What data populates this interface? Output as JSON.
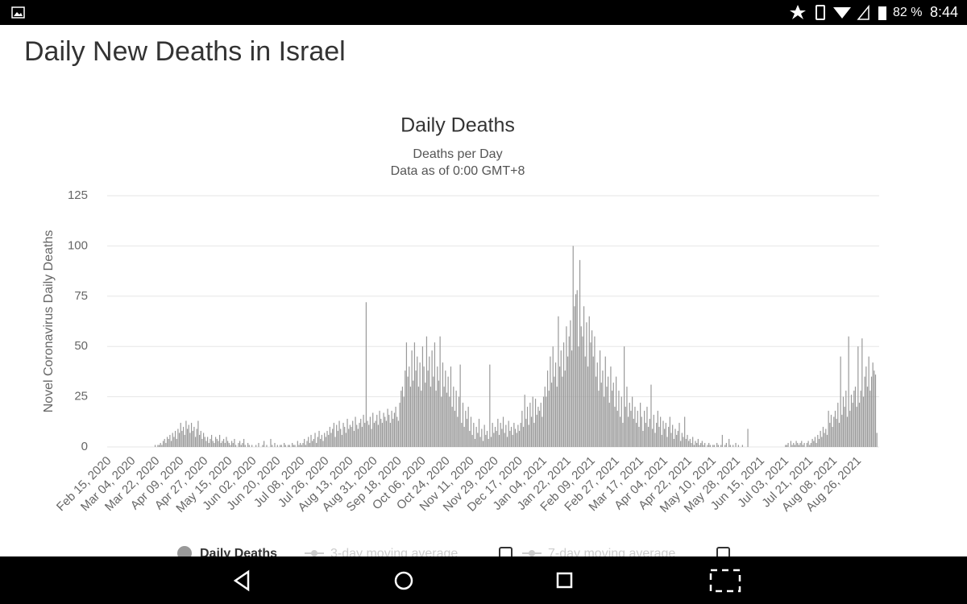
{
  "status_bar": {
    "battery": "82 %",
    "time": "8:44"
  },
  "page_title": "Daily New Deaths in Israel",
  "chart_data": {
    "type": "bar",
    "title": "Daily Deaths",
    "subtitle": [
      "Deaths per Day",
      "Data as of 0:00 GMT+8"
    ],
    "y_label": "Novel Coronavirus Daily Deaths",
    "ylim": [
      0,
      125
    ],
    "yticks": [
      0,
      25,
      50,
      75,
      100,
      125
    ],
    "grid": true,
    "categories": [
      "Feb 15, 2020",
      null,
      null,
      null,
      null,
      null,
      null,
      null,
      null,
      null,
      null,
      null,
      null,
      null,
      null,
      null,
      null,
      null,
      "Mar 04, 2020",
      null,
      null,
      null,
      null,
      null,
      null,
      null,
      null,
      null,
      null,
      null,
      null,
      null,
      null,
      null,
      null,
      null,
      "Mar 22, 2020",
      null,
      null,
      null,
      null,
      null,
      null,
      null,
      null,
      null,
      null,
      null,
      null,
      null,
      null,
      null,
      null,
      null,
      "Apr 09, 2020",
      null,
      null,
      null,
      null,
      null,
      null,
      null,
      null,
      null,
      null,
      null,
      null,
      null,
      null,
      null,
      null,
      null,
      "Apr 27, 2020",
      null,
      null,
      null,
      null,
      null,
      null,
      null,
      null,
      null,
      null,
      null,
      null,
      null,
      null,
      null,
      null,
      null,
      "May 15, 2020",
      null,
      null,
      null,
      null,
      null,
      null,
      null,
      null,
      null,
      null,
      null,
      null,
      null,
      null,
      null,
      null,
      null,
      "Jun 02, 2020",
      null,
      null,
      null,
      null,
      null,
      null,
      null,
      null,
      null,
      null,
      null,
      null,
      null,
      null,
      null,
      null,
      null,
      "Jun 20, 2020",
      null,
      null,
      null,
      null,
      null,
      null,
      null,
      null,
      null,
      null,
      null,
      null,
      null,
      null,
      null,
      null,
      null,
      "Jul 08, 2020",
      null,
      null,
      null,
      null,
      null,
      null,
      null,
      null,
      null,
      null,
      null,
      null,
      null,
      null,
      null,
      null,
      null,
      "Jul 26, 2020",
      null,
      null,
      null,
      null,
      null,
      null,
      null,
      null,
      null,
      null,
      null,
      null,
      null,
      null,
      null,
      null,
      null,
      "Aug 13, 2020",
      null,
      null,
      null,
      null,
      null,
      null,
      null,
      null,
      null,
      null,
      null,
      null,
      null,
      null,
      null,
      null,
      null,
      "Aug 31, 2020",
      null,
      null,
      null,
      null,
      null,
      null,
      null,
      null,
      null,
      null,
      null,
      null,
      null,
      null,
      null,
      null,
      null,
      "Sep 18, 2020",
      null,
      null,
      null,
      null,
      null,
      null,
      null,
      null,
      null,
      null,
      null,
      null,
      null,
      null,
      null,
      null,
      null,
      "Oct 06, 2020",
      null,
      null,
      null,
      null,
      null,
      null,
      null,
      null,
      null,
      null,
      null,
      null,
      null,
      null,
      null,
      null,
      null,
      "Oct 24, 2020",
      null,
      null,
      null,
      null,
      null,
      null,
      null,
      null,
      null,
      null,
      null,
      null,
      null,
      null,
      null,
      null,
      null,
      "Nov 11, 2020",
      null,
      null,
      null,
      null,
      null,
      null,
      null,
      null,
      null,
      null,
      null,
      null,
      null,
      null,
      null,
      null,
      null,
      "Nov 29, 2020",
      null,
      null,
      null,
      null,
      null,
      null,
      null,
      null,
      null,
      null,
      null,
      null,
      null,
      null,
      null,
      null,
      null,
      "Dec 17, 2020",
      null,
      null,
      null,
      null,
      null,
      null,
      null,
      null,
      null,
      null,
      null,
      null,
      null,
      null,
      null,
      null,
      null,
      "Jan 04, 2021",
      null,
      null,
      null,
      null,
      null,
      null,
      null,
      null,
      null,
      null,
      null,
      null,
      null,
      null,
      null,
      null,
      null,
      "Jan 22, 2021",
      null,
      null,
      null,
      null,
      null,
      null,
      null,
      null,
      null,
      null,
      null,
      null,
      null,
      null,
      null,
      null,
      null,
      "Feb 09, 2021",
      null,
      null,
      null,
      null,
      null,
      null,
      null,
      null,
      null,
      null,
      null,
      null,
      null,
      null,
      null,
      null,
      null,
      "Feb 27, 2021",
      null,
      null,
      null,
      null,
      null,
      null,
      null,
      null,
      null,
      null,
      null,
      null,
      null,
      null,
      null,
      null,
      null,
      "Mar 17, 2021",
      null,
      null,
      null,
      null,
      null,
      null,
      null,
      null,
      null,
      null,
      null,
      null,
      null,
      null,
      null,
      null,
      null,
      "Apr 04, 2021",
      null,
      null,
      null,
      null,
      null,
      null,
      null,
      null,
      null,
      null,
      null,
      null,
      null,
      null,
      null,
      null,
      null,
      "Apr 22, 2021",
      null,
      null,
      null,
      null,
      null,
      null,
      null,
      null,
      null,
      null,
      null,
      null,
      null,
      null,
      null,
      null,
      null,
      "May 10, 2021",
      null,
      null,
      null,
      null,
      null,
      null,
      null,
      null,
      null,
      null,
      null,
      null,
      null,
      null,
      null,
      null,
      null,
      "May 28, 2021",
      null,
      null,
      null,
      null,
      null,
      null,
      null,
      null,
      null,
      null,
      null,
      null,
      null,
      null,
      null,
      null,
      null,
      "Jun 15, 2021",
      null,
      null,
      null,
      null,
      null,
      null,
      null,
      null,
      null,
      null,
      null,
      null,
      null,
      null,
      null,
      null,
      null,
      "Jul 03, 2021",
      null,
      null,
      null,
      null,
      null,
      null,
      null,
      null,
      null,
      null,
      null,
      null,
      null,
      null,
      null,
      null,
      null,
      "Jul 21, 2021",
      null,
      null,
      null,
      null,
      null,
      null,
      null,
      null,
      null,
      null,
      null,
      null,
      null,
      null,
      null,
      null,
      null,
      "Aug 08, 2021",
      null,
      null,
      null,
      null,
      null,
      null,
      null,
      null,
      null,
      null,
      null,
      null,
      null,
      null,
      null,
      null,
      null,
      "Aug 26, 2021",
      null,
      null,
      null,
      null,
      null,
      null,
      null,
      null,
      null,
      null,
      null,
      null,
      null
    ],
    "series": [
      {
        "name": "Daily Deaths",
        "color": "#999999",
        "values": [
          0,
          0,
          0,
          0,
          0,
          0,
          0,
          0,
          0,
          0,
          0,
          0,
          0,
          0,
          0,
          0,
          0,
          0,
          0,
          0,
          0,
          0,
          0,
          0,
          0,
          0,
          0,
          0,
          0,
          0,
          0,
          0,
          0,
          0,
          1,
          0,
          1,
          1,
          2,
          1,
          3,
          4,
          2,
          5,
          4,
          6,
          3,
          7,
          5,
          8,
          4,
          9,
          7,
          12,
          8,
          10,
          6,
          13,
          9,
          11,
          7,
          12,
          8,
          10,
          5,
          9,
          13,
          6,
          8,
          4,
          7,
          5,
          3,
          5,
          2,
          4,
          6,
          3,
          2,
          5,
          4,
          3,
          6,
          2,
          3,
          4,
          2,
          5,
          3,
          2,
          1,
          3,
          2,
          4,
          1,
          0,
          2,
          3,
          1,
          2,
          4,
          1,
          0,
          2,
          1,
          0,
          1,
          0,
          0,
          1,
          0,
          2,
          0,
          0,
          1,
          3,
          0,
          1,
          0,
          0,
          4,
          1,
          0,
          2,
          0,
          1,
          0,
          1,
          1,
          0,
          2,
          1,
          0,
          1,
          1,
          0,
          2,
          1,
          1,
          0,
          3,
          1,
          2,
          1,
          2,
          4,
          1,
          3,
          5,
          2,
          6,
          3,
          4,
          7,
          2,
          5,
          8,
          4,
          6,
          3,
          7,
          5,
          8,
          6,
          10,
          7,
          9,
          12,
          5,
          11,
          8,
          13,
          9,
          6,
          12,
          10,
          7,
          14,
          9,
          11,
          10,
          13,
          8,
          15,
          11,
          9,
          12,
          14,
          10,
          16,
          12,
          72,
          13,
          11,
          15,
          9,
          17,
          12,
          13,
          16,
          11,
          18,
          14,
          12,
          17,
          15,
          13,
          19,
          16,
          12,
          18,
          14,
          17,
          20,
          15,
          13,
          22,
          28,
          30,
          25,
          38,
          52,
          35,
          40,
          30,
          48,
          33,
          52,
          38,
          45,
          30,
          42,
          28,
          50,
          40,
          32,
          55,
          38,
          45,
          30,
          48,
          35,
          52,
          28,
          40,
          33,
          55,
          25,
          42,
          30,
          38,
          27,
          35,
          25,
          40,
          20,
          30,
          18,
          28,
          15,
          25,
          41,
          12,
          22,
          10,
          18,
          14,
          20,
          8,
          15,
          6,
          12,
          4,
          10,
          7,
          14,
          5,
          9,
          3,
          11,
          6,
          8,
          4,
          41,
          5,
          12,
          7,
          10,
          8,
          14,
          6,
          12,
          9,
          15,
          7,
          11,
          5,
          13,
          8,
          10,
          6,
          12,
          9,
          7,
          11,
          8,
          12,
          18,
          10,
          26,
          14,
          20,
          11,
          22,
          15,
          25,
          12,
          24,
          16,
          20,
          18,
          22,
          15,
          25,
          30,
          25,
          38,
          28,
          45,
          32,
          50,
          35,
          42,
          30,
          65,
          40,
          48,
          35,
          52,
          38,
          60,
          45,
          55,
          63,
          48,
          100,
          70,
          76,
          78,
          50,
          93,
          60,
          55,
          70,
          45,
          62,
          40,
          65,
          52,
          58,
          45,
          55,
          35,
          42,
          28,
          48,
          32,
          38,
          25,
          45,
          30,
          35,
          22,
          40,
          28,
          32,
          20,
          35,
          18,
          28,
          15,
          25,
          12,
          50,
          20,
          30,
          15,
          22,
          18,
          25,
          14,
          20,
          12,
          18,
          10,
          22,
          15,
          8,
          18,
          12,
          20,
          10,
          14,
          31,
          9,
          16,
          7,
          12,
          18,
          10,
          15,
          6,
          13,
          9,
          12,
          5,
          10,
          15,
          7,
          11,
          4,
          9,
          6,
          8,
          12,
          3,
          7,
          5,
          15,
          4,
          6,
          3,
          4,
          2,
          5,
          1,
          3,
          2,
          4,
          1,
          2,
          3,
          1,
          2,
          0,
          1,
          2,
          1,
          0,
          1,
          1,
          0,
          2,
          1,
          0,
          1,
          6,
          0,
          1,
          2,
          0,
          4,
          1,
          0,
          1,
          0,
          2,
          0,
          1,
          0,
          0,
          1,
          0,
          0,
          0,
          9,
          0,
          0,
          0,
          0,
          0,
          0,
          0,
          0,
          0,
          0,
          0,
          0,
          0,
          0,
          0,
          0,
          0,
          0,
          0,
          0,
          0,
          0,
          0,
          0,
          0,
          0,
          0,
          1,
          1,
          2,
          0,
          3,
          1,
          2,
          1,
          3,
          2,
          1,
          2,
          3,
          1,
          2,
          0,
          2,
          3,
          1,
          2,
          4,
          3,
          5,
          2,
          6,
          4,
          8,
          5,
          10,
          7,
          9,
          6,
          18,
          12,
          16,
          10,
          15,
          18,
          14,
          22,
          12,
          45,
          16,
          25,
          20,
          28,
          15,
          55,
          18,
          26,
          22,
          28,
          30,
          20,
          50,
          22,
          28,
          54,
          25,
          35,
          40,
          30,
          45,
          28,
          35,
          42,
          38,
          36,
          7
        ]
      }
    ],
    "hidden_series": [
      "3-day moving average",
      "7-day moving average"
    ]
  }
}
